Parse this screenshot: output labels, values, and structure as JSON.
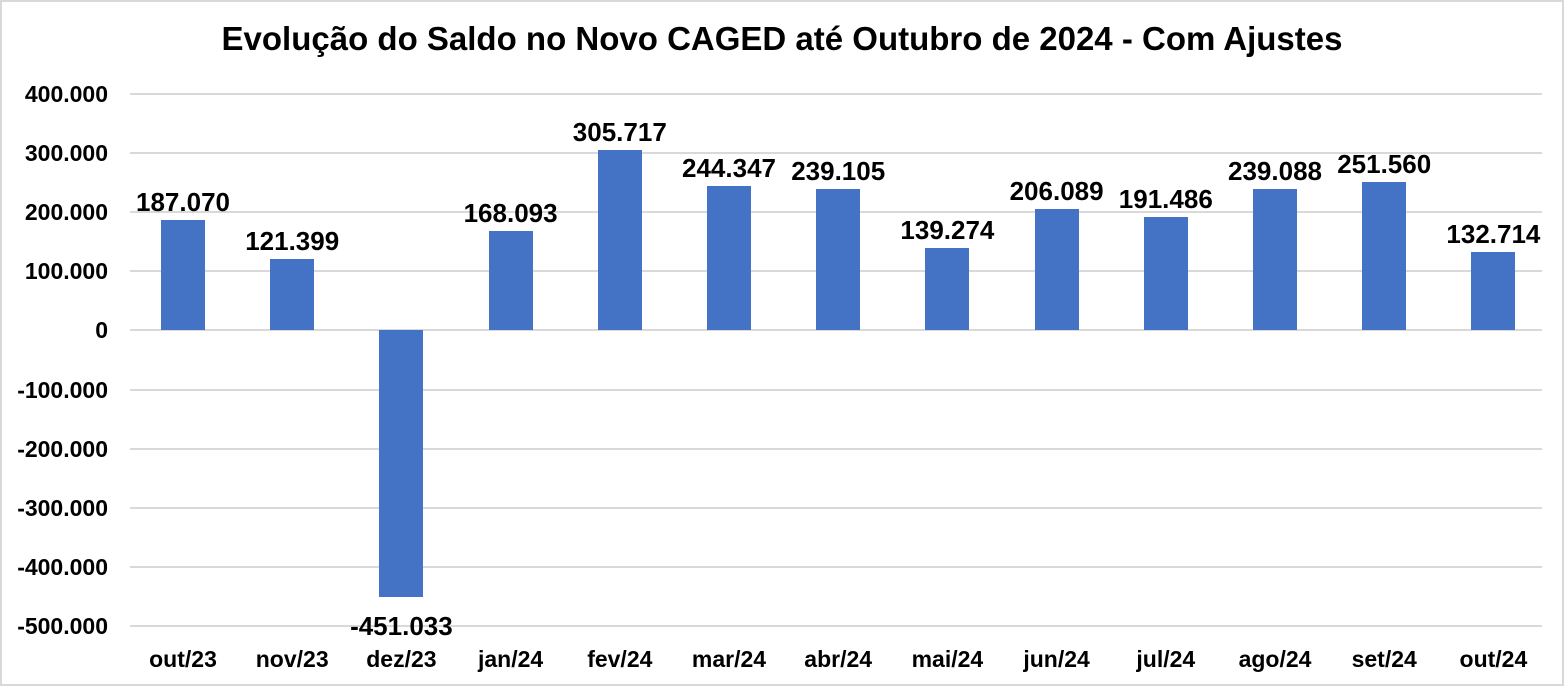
{
  "chart": {
    "title": "Evolução do Saldo no Novo CAGED até Outubro de 2024 - Com Ajustes"
  },
  "chart_data": {
    "type": "bar",
    "title": "Evolução do Saldo no Novo CAGED até Outubro de 2024 - Com Ajustes",
    "categories": [
      "out/23",
      "nov/23",
      "dez/23",
      "jan/24",
      "fev/24",
      "mar/24",
      "abr/24",
      "mai/24",
      "jun/24",
      "jul/24",
      "ago/24",
      "set/24",
      "out/24"
    ],
    "values": [
      187070,
      121399,
      -451033,
      168093,
      305717,
      244347,
      239105,
      139274,
      206089,
      191486,
      239088,
      251560,
      132714
    ],
    "value_labels": [
      "187.070",
      "121.399",
      "-451.033",
      "168.093",
      "305.717",
      "244.347",
      "239.105",
      "139.274",
      "206.089",
      "191.486",
      "239.088",
      "251.560",
      "132.714"
    ],
    "xlabel": "",
    "ylabel": "",
    "ylim": [
      -500000,
      400000
    ],
    "ytick_step": 100000,
    "ytick_labels": [
      "400.000",
      "300.000",
      "200.000",
      "100.000",
      "0",
      "-100.000",
      "-200.000",
      "-300.000",
      "-400.000",
      "-500.000"
    ],
    "grid": true,
    "legend_position": "none",
    "data_label_position": "outside-end",
    "bar_color": "#4472C4",
    "gridline_color": "#D9D9D9",
    "text_color": "#000000",
    "background_color": "#FFFFFF"
  }
}
